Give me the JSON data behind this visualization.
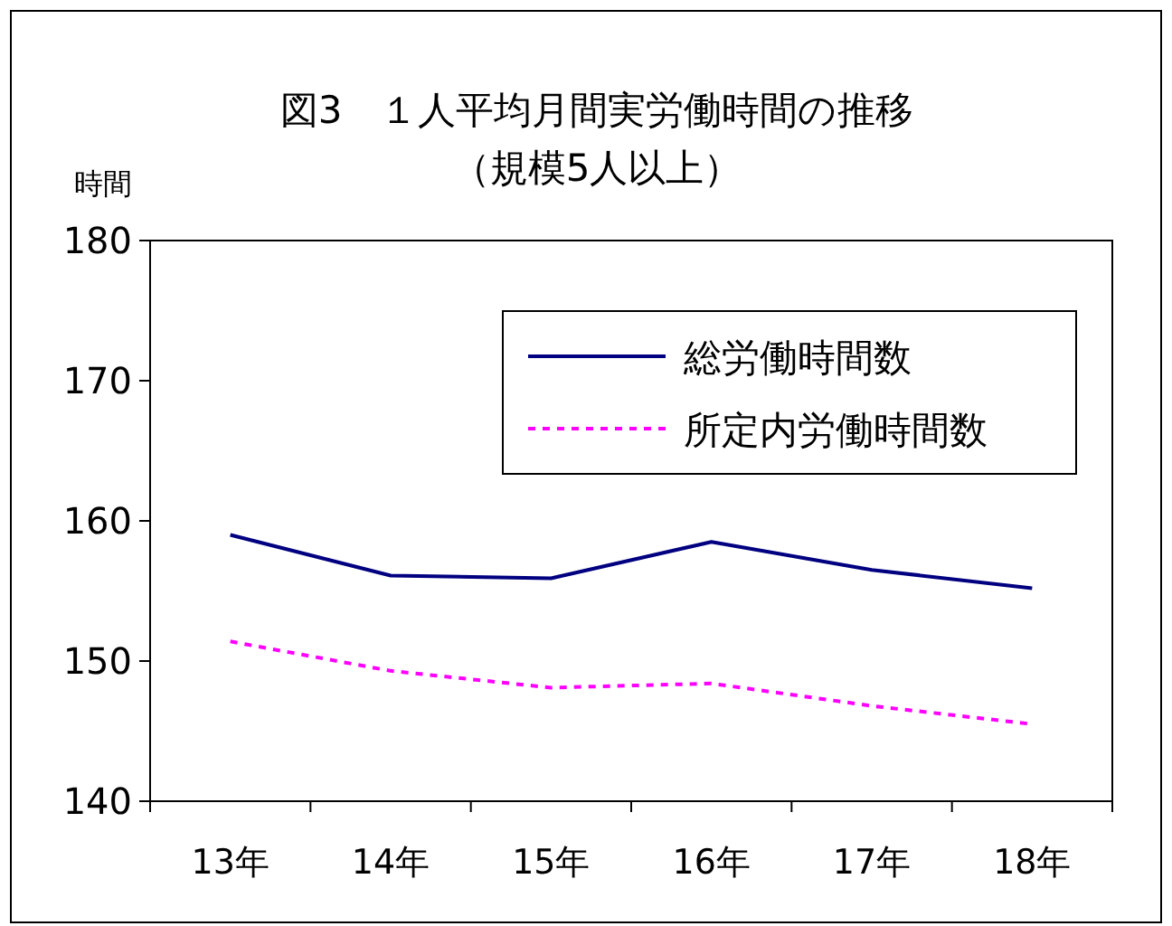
{
  "chart_data": {
    "type": "line",
    "title": "図3　１人平均月間実労働時間の推移",
    "subtitle": "（規模5人以上）",
    "ylabel": "時間",
    "categories": [
      "13年",
      "14年",
      "15年",
      "16年",
      "17年",
      "18年"
    ],
    "ylim": [
      140,
      180
    ],
    "yticks": [
      140,
      150,
      160,
      170,
      180
    ],
    "grid": false,
    "legend": "top right",
    "marker": "none",
    "series": [
      {
        "name": "総労働時間数",
        "color": "#000080",
        "line_style": "solid",
        "values": [
          159.0,
          156.1,
          155.9,
          158.5,
          156.5,
          155.2
        ]
      },
      {
        "name": "所定内労働時間数",
        "color": "#ff00ff",
        "line_style": "dotted",
        "values": [
          151.4,
          149.3,
          148.1,
          148.4,
          146.8,
          145.5
        ]
      }
    ]
  }
}
